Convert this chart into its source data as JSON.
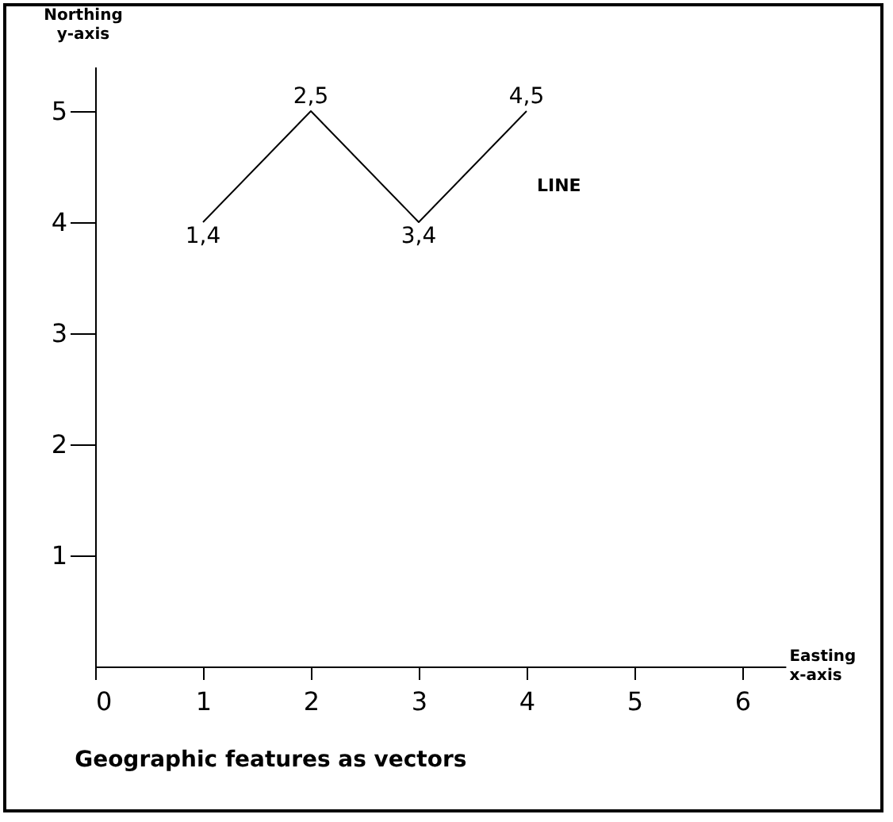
{
  "chart_data": {
    "type": "line",
    "title": "Geographic features as vectors",
    "xlabel": "Easting x-axis",
    "ylabel": "Northing y-axis",
    "x": [
      1,
      2,
      3,
      4
    ],
    "series": [
      {
        "color": "#000000",
        "values": [
          4,
          5,
          4,
          5
        ]
      }
    ],
    "xlim": [
      0,
      6.4
    ],
    "ylim": [
      0,
      5.4
    ],
    "xticks": [
      0,
      1,
      2,
      3,
      4,
      5,
      6
    ],
    "yticks": [
      1,
      2,
      3,
      4,
      5
    ],
    "grid": false,
    "marker": "none",
    "line_style": "solid",
    "annotations": [
      {
        "text": "1,4",
        "x": 1,
        "y": 4
      },
      {
        "text": "2,5",
        "x": 2,
        "y": 5
      },
      {
        "text": "3,4",
        "x": 3,
        "y": 4
      },
      {
        "text": "4,5",
        "x": 4,
        "y": 5
      },
      "LINE"
    ]
  }
}
